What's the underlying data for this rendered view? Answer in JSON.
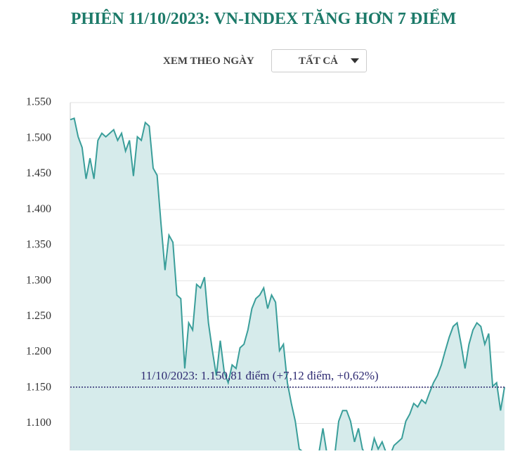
{
  "header": {
    "title": "PHIÊN 11/10/2023: VN-INDEX TĂNG HƠN 7 ĐIỂM",
    "filter_label": "XEM THEO NGÀY",
    "filter_value": "TẤT CẢ"
  },
  "chart_data": {
    "type": "area",
    "color": "#3a9e9a",
    "fill": "#d6ebeb",
    "grid": true,
    "ylim": [
      1062,
      1550
    ],
    "yticks": [
      {
        "value": 1100,
        "label": "1.100"
      },
      {
        "value": 1150,
        "label": "1.150"
      },
      {
        "value": 1200,
        "label": "1.200"
      },
      {
        "value": 1250,
        "label": "1.250"
      },
      {
        "value": 1300,
        "label": "1.300"
      },
      {
        "value": 1350,
        "label": "1.350"
      },
      {
        "value": 1400,
        "label": "1.400"
      },
      {
        "value": 1450,
        "label": "1.450"
      },
      {
        "value": 1500,
        "label": "1.500"
      },
      {
        "value": 1550,
        "label": "1.550"
      }
    ],
    "values": [
      1526,
      1528,
      1502,
      1487,
      1443,
      1472,
      1443,
      1497,
      1507,
      1502,
      1507,
      1512,
      1497,
      1507,
      1482,
      1497,
      1447,
      1502,
      1497,
      1522,
      1517,
      1458,
      1448,
      1379,
      1315,
      1364,
      1354,
      1280,
      1275,
      1177,
      1241,
      1231,
      1295,
      1290,
      1305,
      1241,
      1202,
      1167,
      1216,
      1172,
      1157,
      1182,
      1177,
      1206,
      1211,
      1231,
      1261,
      1275,
      1280,
      1290,
      1261,
      1280,
      1270,
      1202,
      1211,
      1157,
      1128,
      1103,
      1064,
      1060,
      1058,
      1059,
      1056,
      1059,
      1093,
      1058,
      1054,
      1056,
      1103,
      1118,
      1118,
      1103,
      1074,
      1093,
      1064,
      1055,
      1054,
      1079,
      1064,
      1074,
      1059,
      1055,
      1069,
      1074,
      1079,
      1103,
      1113,
      1128,
      1123,
      1133,
      1128,
      1143,
      1157,
      1167,
      1182,
      1202,
      1221,
      1236,
      1241,
      1211,
      1177,
      1211,
      1231,
      1241,
      1236,
      1211,
      1226,
      1152,
      1157,
      1118,
      1150.81
    ],
    "reference": {
      "value": 1150.81,
      "label": "11/10/2023: 1.150,81 điểm (+7,12 điểm, +0,62%)",
      "color": "#2e2a72"
    }
  }
}
